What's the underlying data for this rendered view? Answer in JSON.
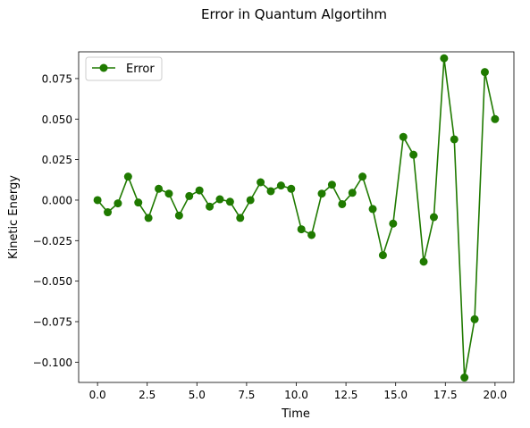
{
  "chart_data": {
    "type": "line",
    "title": "Error in Quantum Algortihm",
    "xlabel": "Time",
    "ylabel": "Kinetic Energy",
    "xlim": [
      -0.95,
      20.95
    ],
    "ylim": [
      -0.1125,
      0.0915
    ],
    "xticks": [
      0.0,
      2.5,
      5.0,
      7.5,
      10.0,
      12.5,
      15.0,
      17.5,
      20.0
    ],
    "xtick_labels": [
      "0.0",
      "2.5",
      "5.0",
      "7.5",
      "10.0",
      "12.5",
      "15.0",
      "17.5",
      "20.0"
    ],
    "yticks": [
      -0.1,
      -0.075,
      -0.05,
      -0.025,
      0.0,
      0.025,
      0.05,
      0.075
    ],
    "ytick_labels": [
      "−0.100",
      "−0.075",
      "−0.050",
      "−0.025",
      "0.000",
      "0.025",
      "0.050",
      "0.075"
    ],
    "grid": false,
    "legend_position": "top-left",
    "series": [
      {
        "name": "Error",
        "color": "#1f7a00",
        "marker": "circle",
        "x": [
          0.0,
          0.513,
          1.026,
          1.538,
          2.051,
          2.564,
          3.077,
          3.59,
          4.103,
          4.615,
          5.128,
          5.641,
          6.154,
          6.667,
          7.179,
          7.692,
          8.205,
          8.718,
          9.231,
          9.744,
          10.256,
          10.769,
          11.282,
          11.795,
          12.308,
          12.821,
          13.333,
          13.846,
          14.359,
          14.872,
          15.385,
          15.897,
          16.41,
          16.923,
          17.436,
          17.949,
          18.462,
          18.974,
          19.487,
          20.0
        ],
        "y": [
          0.0,
          -0.0075,
          -0.002,
          0.0145,
          -0.0015,
          -0.011,
          0.007,
          0.004,
          -0.0095,
          0.0025,
          0.006,
          -0.004,
          0.0005,
          -0.001,
          -0.011,
          0.0,
          0.011,
          0.0055,
          0.009,
          0.007,
          -0.018,
          -0.0215,
          0.004,
          0.0095,
          -0.0025,
          0.0045,
          0.0145,
          -0.0055,
          -0.034,
          -0.0145,
          0.039,
          0.028,
          -0.038,
          -0.0105,
          0.0875,
          0.0375,
          -0.1095,
          -0.0735,
          0.079,
          0.05
        ]
      }
    ]
  }
}
